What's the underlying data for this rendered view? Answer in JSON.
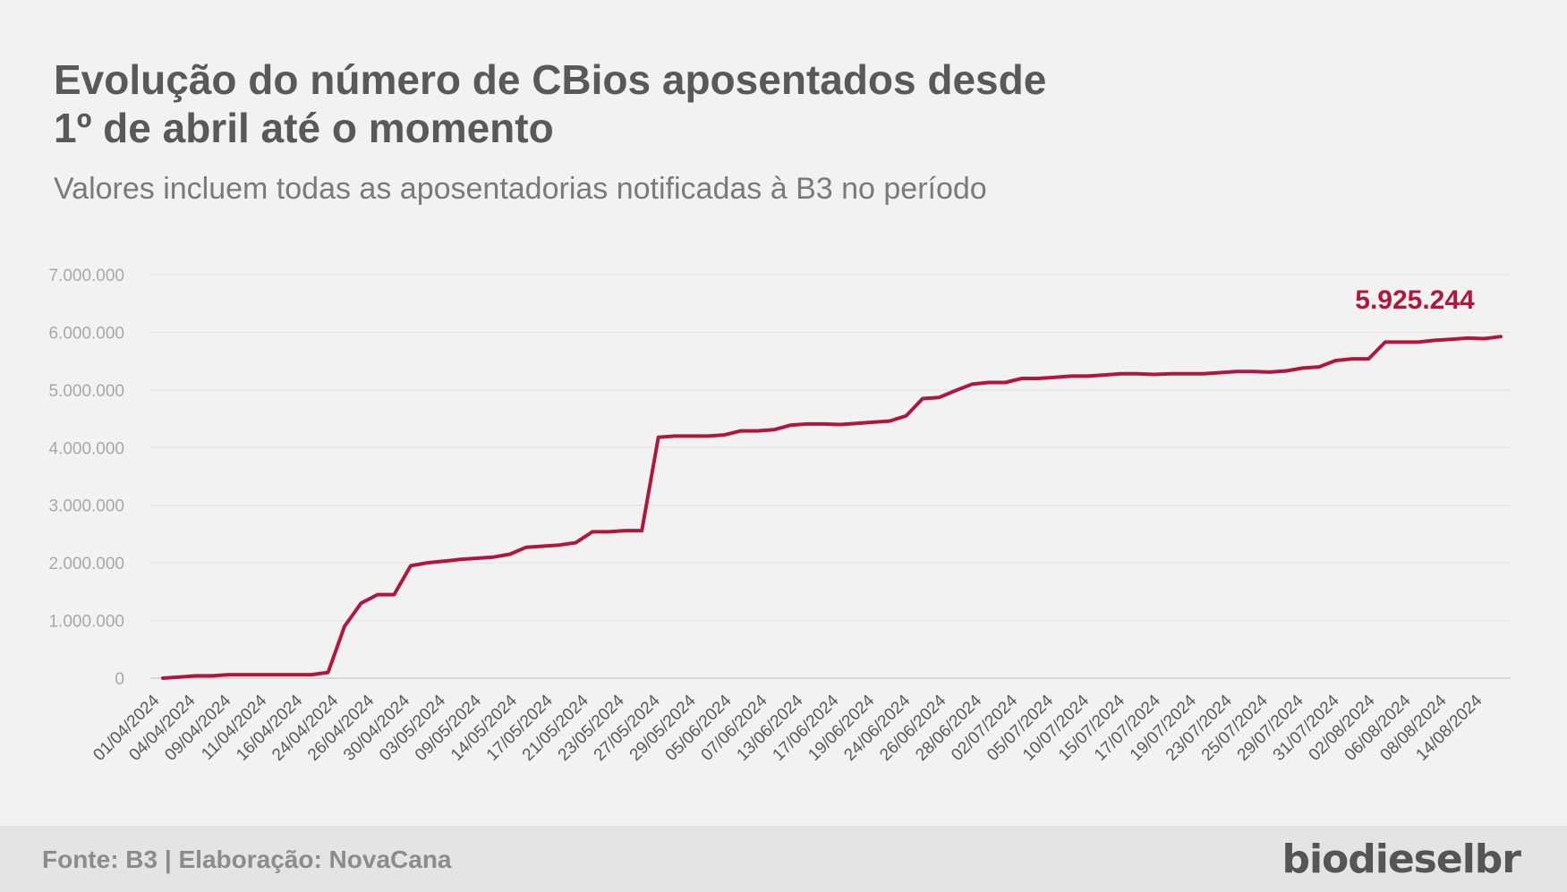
{
  "title_line1": "Evolução do número de CBios aposentados desde",
  "title_line2": "1º de abril até o momento",
  "subtitle": "Valores incluem todas as aposentadorias notificadas à B3 no período",
  "source": "Fonte: B3 | Elaboração: NovaCana",
  "logo": "biodieselbr",
  "colors": {
    "line": "#b0173f",
    "grid": "#e2e2e2",
    "background": "#f2f2f2"
  },
  "chart_data": {
    "type": "line",
    "title": "Evolução do número de CBios aposentados desde 1º de abril até o momento",
    "subtitle": "Valores incluem todas as aposentadorias notificadas à B3 no período",
    "xlabel": "",
    "ylabel": "",
    "ylim": [
      0,
      7000000
    ],
    "yticks": [
      0,
      1000000,
      2000000,
      3000000,
      4000000,
      5000000,
      6000000,
      7000000
    ],
    "ytick_labels": [
      "0",
      "1.000.000",
      "2.000.000",
      "3.000.000",
      "4.000.000",
      "5.000.000",
      "6.000.000",
      "7.000.000"
    ],
    "xtick_labels": [
      "01/04/2024",
      "04/04/2024",
      "09/04/2024",
      "11/04/2024",
      "16/04/2024",
      "24/04/2024",
      "26/04/2024",
      "30/04/2024",
      "03/05/2024",
      "09/05/2024",
      "14/05/2024",
      "17/05/2024",
      "21/05/2024",
      "23/05/2024",
      "27/05/2024",
      "29/05/2024",
      "05/06/2024",
      "07/06/2024",
      "13/06/2024",
      "17/06/2024",
      "19/06/2024",
      "24/06/2024",
      "26/06/2024",
      "28/06/2024",
      "02/07/2024",
      "05/07/2024",
      "10/07/2024",
      "15/07/2024",
      "17/07/2024",
      "19/07/2024",
      "23/07/2024",
      "25/07/2024",
      "29/07/2024",
      "31/07/2024",
      "02/08/2024",
      "06/08/2024",
      "08/08/2024",
      "14/08/2024"
    ],
    "grid": true,
    "legend": "none",
    "last_value_label": "5.925.244",
    "series": [
      {
        "values": [
          0,
          20000,
          40000,
          40000,
          60000,
          60000,
          60000,
          60000,
          60000,
          60000,
          100000,
          900000,
          1300000,
          1450000,
          1450000,
          1950000,
          2000000,
          2030000,
          2060000,
          2080000,
          2100000,
          2150000,
          2270000,
          2290000,
          2310000,
          2350000,
          2540000,
          2540000,
          2560000,
          2560000,
          4180000,
          4200000,
          4200000,
          4200000,
          4220000,
          4290000,
          4290000,
          4310000,
          4390000,
          4410000,
          4410000,
          4400000,
          4420000,
          4440000,
          4460000,
          4550000,
          4850000,
          4870000,
          4990000,
          5100000,
          5130000,
          5130000,
          5200000,
          5200000,
          5220000,
          5240000,
          5240000,
          5260000,
          5280000,
          5280000,
          5270000,
          5280000,
          5280000,
          5280000,
          5300000,
          5320000,
          5320000,
          5310000,
          5330000,
          5380000,
          5400000,
          5510000,
          5540000,
          5540000,
          5830000,
          5830000,
          5830000,
          5860000,
          5880000,
          5900000,
          5890000,
          5925244
        ]
      }
    ]
  }
}
